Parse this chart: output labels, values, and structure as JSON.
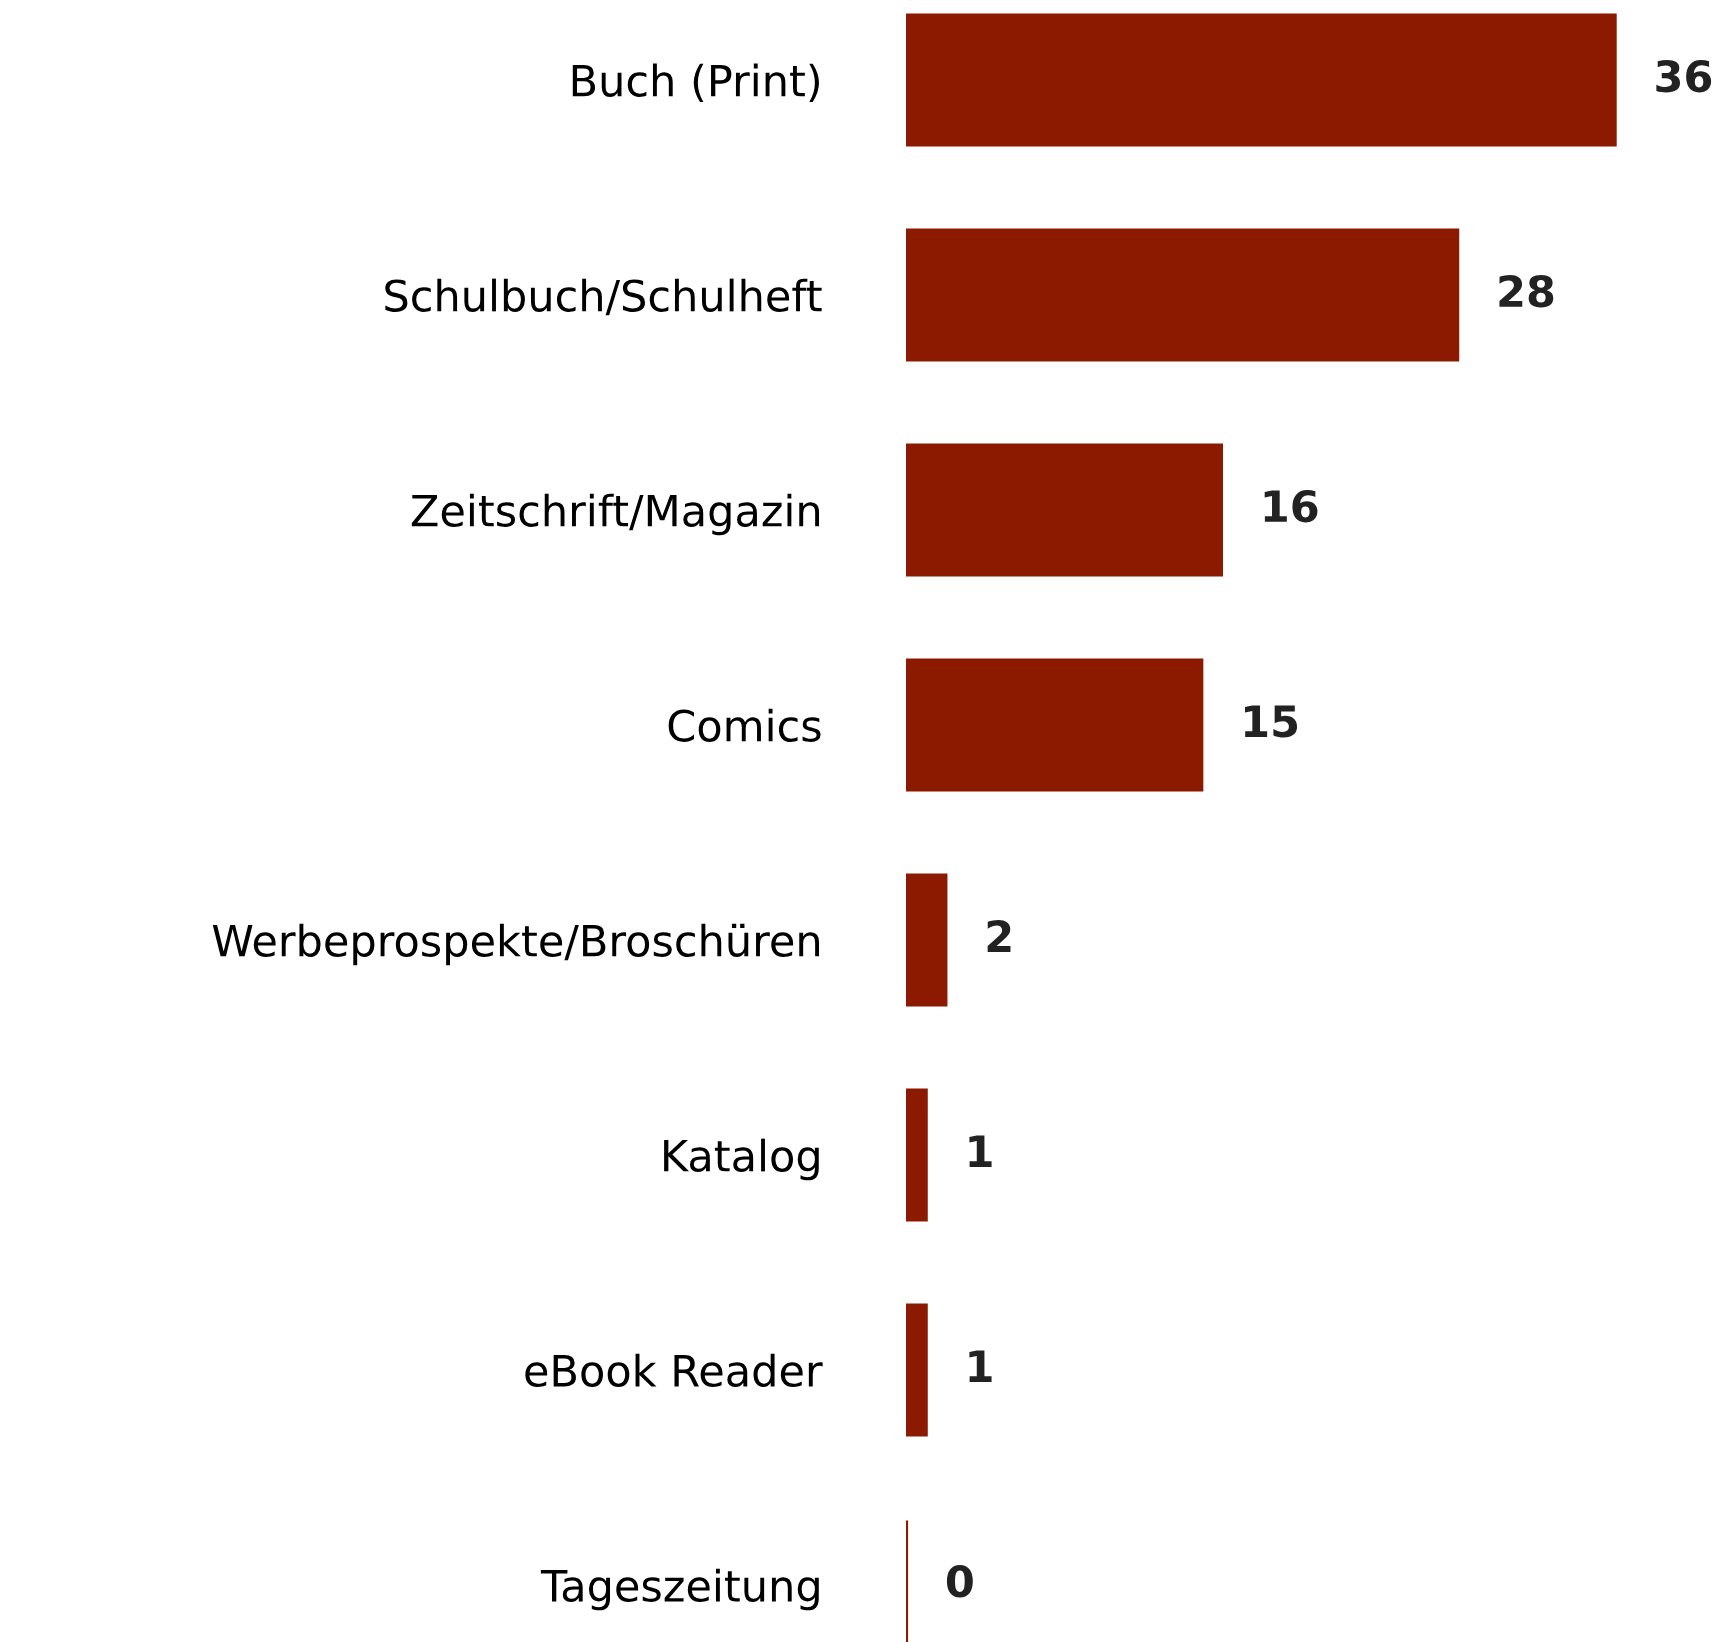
{
  "chart_data": {
    "type": "bar",
    "orientation": "horizontal",
    "categories": [
      "Buch (Print)",
      "Schulbuch/Schulheft",
      "Zeitschrift/Magazin",
      "Comics",
      "Werbeprospekte/Broschüren",
      "Katalog",
      "eBook Reader",
      "Tageszeitung"
    ],
    "values": [
      36,
      28,
      16,
      15,
      2,
      1,
      1,
      0
    ],
    "color": "#8b1a00",
    "data_labels": true,
    "grid": false
  }
}
